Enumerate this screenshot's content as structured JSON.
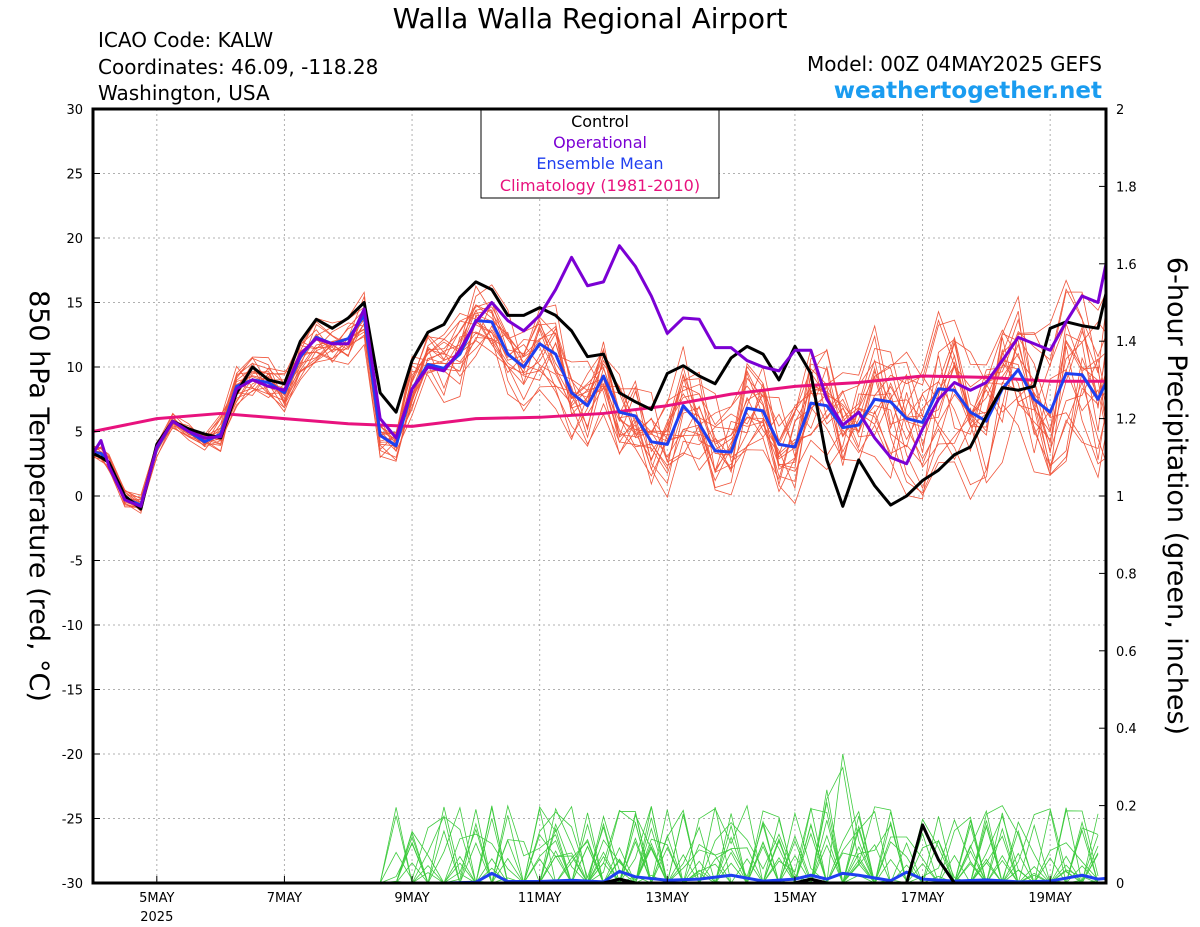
{
  "header": {
    "title": "Walla Walla Regional Airport",
    "icao": "ICAO Code: KALW",
    "coordinates": "Coordinates: 46.09, -118.28",
    "location": "Washington, USA",
    "model": "Model: 00Z 04MAY2025 GEFS",
    "site": "weathertogether.net"
  },
  "colors": {
    "control": "#000000",
    "operational": "#7b00d4",
    "ensemble_mean": "#1f3ff0",
    "climatology": "#e8127e",
    "member_temp": "#f0563c",
    "member_precip": "#3ecb3e",
    "site": "#1a9cf0",
    "grid": "#b0b0b0"
  },
  "chart_data": {
    "type": "line",
    "x_unit": "day of May 2025 (00Z)",
    "xlim": [
      4.0,
      19.875
    ],
    "x_ticks": [
      {
        "x": 5,
        "label": "5MAY",
        "sub": "2025"
      },
      {
        "x": 7,
        "label": "7MAY"
      },
      {
        "x": 9,
        "label": "9MAY"
      },
      {
        "x": 11,
        "label": "11MAY"
      },
      {
        "x": 13,
        "label": "13MAY"
      },
      {
        "x": 15,
        "label": "15MAY"
      },
      {
        "x": 17,
        "label": "17MAY"
      },
      {
        "x": 19,
        "label": "19MAY"
      }
    ],
    "y_left": {
      "label": "850 hPa Temperature (red, °C)",
      "lim": [
        -30,
        30
      ],
      "ticks": [
        30,
        25,
        20,
        15,
        10,
        5,
        0,
        -5,
        -10,
        -15,
        -20,
        -25,
        -30
      ]
    },
    "y_right": {
      "label": "6-hour Precipitation (green, inches)",
      "lim": [
        0,
        2
      ],
      "ticks": [
        "2",
        "1.8",
        "1.6",
        "1.4",
        "1.2",
        "1",
        "0.8",
        "0.6",
        "0.4",
        "0.2",
        "0"
      ]
    },
    "grid": true,
    "legend": {
      "position": "top-center",
      "entries": [
        {
          "label": "Control",
          "series": "control"
        },
        {
          "label": "Operational",
          "series": "operational"
        },
        {
          "label": "Ensemble Mean",
          "series": "ensemble_mean"
        },
        {
          "label": "Climatology (1981-2010)",
          "series": "climatology"
        }
      ]
    },
    "series": {
      "control": {
        "axis": "left",
        "points": [
          [
            4,
            3.3
          ],
          [
            4.125,
            3
          ],
          [
            4.25,
            2.6
          ],
          [
            4.5,
            0
          ],
          [
            4.75,
            -1
          ],
          [
            5,
            4
          ],
          [
            5.25,
            5.8
          ],
          [
            5.5,
            5.2
          ],
          [
            5.75,
            4.8
          ],
          [
            6,
            4.5
          ],
          [
            6.25,
            8
          ],
          [
            6.5,
            10
          ],
          [
            6.75,
            9
          ],
          [
            7,
            8.7
          ],
          [
            7.25,
            12
          ],
          [
            7.5,
            13.7
          ],
          [
            7.75,
            13
          ],
          [
            8,
            13.8
          ],
          [
            8.25,
            15
          ],
          [
            8.5,
            8
          ],
          [
            8.75,
            6.5
          ],
          [
            9,
            10.5
          ],
          [
            9.25,
            12.7
          ],
          [
            9.5,
            13.3
          ],
          [
            9.75,
            15.4
          ],
          [
            10,
            16.6
          ],
          [
            10.25,
            16
          ],
          [
            10.5,
            14
          ],
          [
            10.75,
            14
          ],
          [
            11,
            14.6
          ],
          [
            11.25,
            14
          ],
          [
            11.5,
            12.8
          ],
          [
            11.75,
            10.8
          ],
          [
            12,
            11
          ],
          [
            12.25,
            8
          ],
          [
            12.5,
            7.3
          ],
          [
            12.75,
            6.7
          ],
          [
            13,
            9.5
          ],
          [
            13.25,
            10.1
          ],
          [
            13.5,
            9.3
          ],
          [
            13.75,
            8.7
          ],
          [
            14,
            10.7
          ],
          [
            14.25,
            11.6
          ],
          [
            14.5,
            11
          ],
          [
            14.75,
            9
          ],
          [
            15,
            11.6
          ],
          [
            15.25,
            9.5
          ],
          [
            15.5,
            2.8
          ],
          [
            15.75,
            -0.8
          ],
          [
            16,
            2.8
          ],
          [
            16.25,
            0.8
          ],
          [
            16.5,
            -0.7
          ],
          [
            16.75,
            0
          ],
          [
            17,
            1.2
          ],
          [
            17.25,
            2
          ],
          [
            17.5,
            3.2
          ],
          [
            17.75,
            3.8
          ],
          [
            18,
            6.2
          ],
          [
            18.25,
            8.4
          ],
          [
            18.5,
            8.2
          ],
          [
            18.75,
            8.5
          ],
          [
            19,
            13
          ],
          [
            19.25,
            13.5
          ],
          [
            19.5,
            13.2
          ],
          [
            19.75,
            13
          ],
          [
            19.875,
            15.7
          ]
        ]
      },
      "operational": {
        "axis": "left",
        "points": [
          [
            4,
            3.3
          ],
          [
            4.125,
            4.3
          ],
          [
            4.25,
            2.3
          ],
          [
            4.5,
            -0.3
          ],
          [
            4.75,
            -0.8
          ],
          [
            5,
            3.8
          ],
          [
            5.25,
            5.8
          ],
          [
            5.5,
            5
          ],
          [
            5.75,
            4.5
          ],
          [
            6,
            4.6
          ],
          [
            6.25,
            8.3
          ],
          [
            6.5,
            9
          ],
          [
            6.75,
            8.5
          ],
          [
            7,
            8.2
          ],
          [
            7.25,
            11
          ],
          [
            7.5,
            12.2
          ],
          [
            7.75,
            11.8
          ],
          [
            8,
            11.8
          ],
          [
            8.25,
            14.5
          ],
          [
            8.5,
            6
          ],
          [
            8.75,
            4.5
          ],
          [
            9,
            8.3
          ],
          [
            9.25,
            10
          ],
          [
            9.5,
            9.7
          ],
          [
            9.75,
            11.3
          ],
          [
            10,
            13.5
          ],
          [
            10.25,
            15
          ],
          [
            10.5,
            13.6
          ],
          [
            10.75,
            12.8
          ],
          [
            11,
            14
          ],
          [
            11.25,
            16
          ],
          [
            11.5,
            18.5
          ],
          [
            11.75,
            16.3
          ],
          [
            12,
            16.6
          ],
          [
            12.25,
            19.4
          ],
          [
            12.5,
            17.8
          ],
          [
            12.75,
            15.5
          ],
          [
            13,
            12.6
          ],
          [
            13.25,
            13.8
          ],
          [
            13.5,
            13.7
          ],
          [
            13.75,
            11.5
          ],
          [
            14,
            11.5
          ],
          [
            14.25,
            10.5
          ],
          [
            14.5,
            10
          ],
          [
            14.75,
            9.7
          ],
          [
            15,
            11.3
          ],
          [
            15.25,
            11.3
          ],
          [
            15.5,
            7.5
          ],
          [
            15.75,
            5.5
          ],
          [
            16,
            6.5
          ],
          [
            16.25,
            4.5
          ],
          [
            16.5,
            3
          ],
          [
            16.75,
            2.5
          ],
          [
            17,
            5.2
          ],
          [
            17.25,
            7.5
          ],
          [
            17.5,
            8.8
          ],
          [
            17.75,
            8.2
          ],
          [
            18,
            8.8
          ],
          [
            18.25,
            10.5
          ],
          [
            18.5,
            12.3
          ],
          [
            18.75,
            11.8
          ],
          [
            19,
            11.3
          ],
          [
            19.25,
            13.5
          ],
          [
            19.5,
            15.5
          ],
          [
            19.75,
            15
          ],
          [
            19.875,
            18
          ]
        ]
      },
      "ensemble_mean": {
        "axis": "left",
        "points": [
          [
            4,
            3.4
          ],
          [
            4.125,
            3.3
          ],
          [
            4.25,
            2.6
          ],
          [
            4.5,
            -0.2
          ],
          [
            4.75,
            -0.7
          ],
          [
            5,
            3.7
          ],
          [
            5.25,
            5.8
          ],
          [
            5.5,
            5
          ],
          [
            5.75,
            4.2
          ],
          [
            6,
            4.8
          ],
          [
            6.25,
            8.5
          ],
          [
            6.5,
            9
          ],
          [
            6.75,
            8.8
          ],
          [
            7,
            8
          ],
          [
            7.25,
            10.8
          ],
          [
            7.5,
            12.3
          ],
          [
            7.75,
            11.8
          ],
          [
            8,
            12.2
          ],
          [
            8.25,
            14
          ],
          [
            8.5,
            4.7
          ],
          [
            8.75,
            3.9
          ],
          [
            9,
            8.3
          ],
          [
            9.25,
            10.2
          ],
          [
            9.5,
            9.9
          ],
          [
            9.75,
            11
          ],
          [
            10,
            13.6
          ],
          [
            10.25,
            13.5
          ],
          [
            10.5,
            11
          ],
          [
            10.75,
            10
          ],
          [
            11,
            11.8
          ],
          [
            11.25,
            11
          ],
          [
            11.5,
            8
          ],
          [
            11.75,
            7
          ],
          [
            12,
            9.3
          ],
          [
            12.25,
            6.5
          ],
          [
            12.5,
            6.2
          ],
          [
            12.75,
            4.2
          ],
          [
            13,
            4
          ],
          [
            13.25,
            7
          ],
          [
            13.5,
            5.6
          ],
          [
            13.75,
            3.5
          ],
          [
            14,
            3.4
          ],
          [
            14.25,
            6.8
          ],
          [
            14.5,
            6.6
          ],
          [
            14.75,
            4
          ],
          [
            15,
            3.8
          ],
          [
            15.25,
            7.2
          ],
          [
            15.5,
            7
          ],
          [
            15.75,
            5.3
          ],
          [
            16,
            5.5
          ],
          [
            16.25,
            7.5
          ],
          [
            16.5,
            7.3
          ],
          [
            16.75,
            6
          ],
          [
            17,
            5.7
          ],
          [
            17.25,
            8.3
          ],
          [
            17.5,
            8.2
          ],
          [
            17.75,
            6.5
          ],
          [
            18,
            5.8
          ],
          [
            18.25,
            8.3
          ],
          [
            18.5,
            9.8
          ],
          [
            18.75,
            7.5
          ],
          [
            19,
            6.5
          ],
          [
            19.25,
            9.5
          ],
          [
            19.5,
            9.4
          ],
          [
            19.75,
            7.5
          ],
          [
            19.875,
            8.8
          ]
        ]
      },
      "climatology": {
        "axis": "left",
        "points": [
          [
            4,
            5
          ],
          [
            5,
            6
          ],
          [
            6,
            6.4
          ],
          [
            7,
            6
          ],
          [
            8,
            5.6
          ],
          [
            9,
            5.4
          ],
          [
            10,
            6
          ],
          [
            11,
            6.1
          ],
          [
            12,
            6.4
          ],
          [
            13,
            7
          ],
          [
            14,
            7.9
          ],
          [
            15,
            8.5
          ],
          [
            16,
            8.8
          ],
          [
            17,
            9.3
          ],
          [
            18,
            9.2
          ],
          [
            19,
            8.9
          ],
          [
            19.875,
            8.9
          ]
        ]
      },
      "control_precip": {
        "axis": "right",
        "points": [
          [
            4,
            0
          ],
          [
            12,
            0
          ],
          [
            12.25,
            0.01
          ],
          [
            12.5,
            0
          ],
          [
            15,
            0
          ],
          [
            15.25,
            0.01
          ],
          [
            15.5,
            0
          ],
          [
            16.75,
            0
          ],
          [
            17,
            0.15
          ],
          [
            17.25,
            0.06
          ],
          [
            17.5,
            0
          ],
          [
            19.875,
            0
          ]
        ]
      },
      "ensemble_mean_precip": {
        "axis": "right",
        "points": [
          [
            4,
            0
          ],
          [
            9.5,
            0
          ],
          [
            10,
            0.002
          ],
          [
            10.25,
            0.025
          ],
          [
            10.5,
            0.004
          ],
          [
            11,
            0.004
          ],
          [
            11.5,
            0.007
          ],
          [
            12,
            0.003
          ],
          [
            12.25,
            0.03
          ],
          [
            12.5,
            0.016
          ],
          [
            13,
            0.007
          ],
          [
            13.5,
            0.01
          ],
          [
            14,
            0.02
          ],
          [
            14.5,
            0.005
          ],
          [
            15,
            0.01
          ],
          [
            15.25,
            0.02
          ],
          [
            15.5,
            0.01
          ],
          [
            15.75,
            0.025
          ],
          [
            16,
            0.02
          ],
          [
            16.5,
            0.006
          ],
          [
            16.75,
            0.028
          ],
          [
            17,
            0.01
          ],
          [
            17.5,
            0.005
          ],
          [
            18,
            0.008
          ],
          [
            18.5,
            0.003
          ],
          [
            19,
            0.005
          ],
          [
            19.5,
            0.02
          ],
          [
            19.75,
            0.01
          ],
          [
            19.875,
            0.012
          ]
        ]
      }
    }
  }
}
